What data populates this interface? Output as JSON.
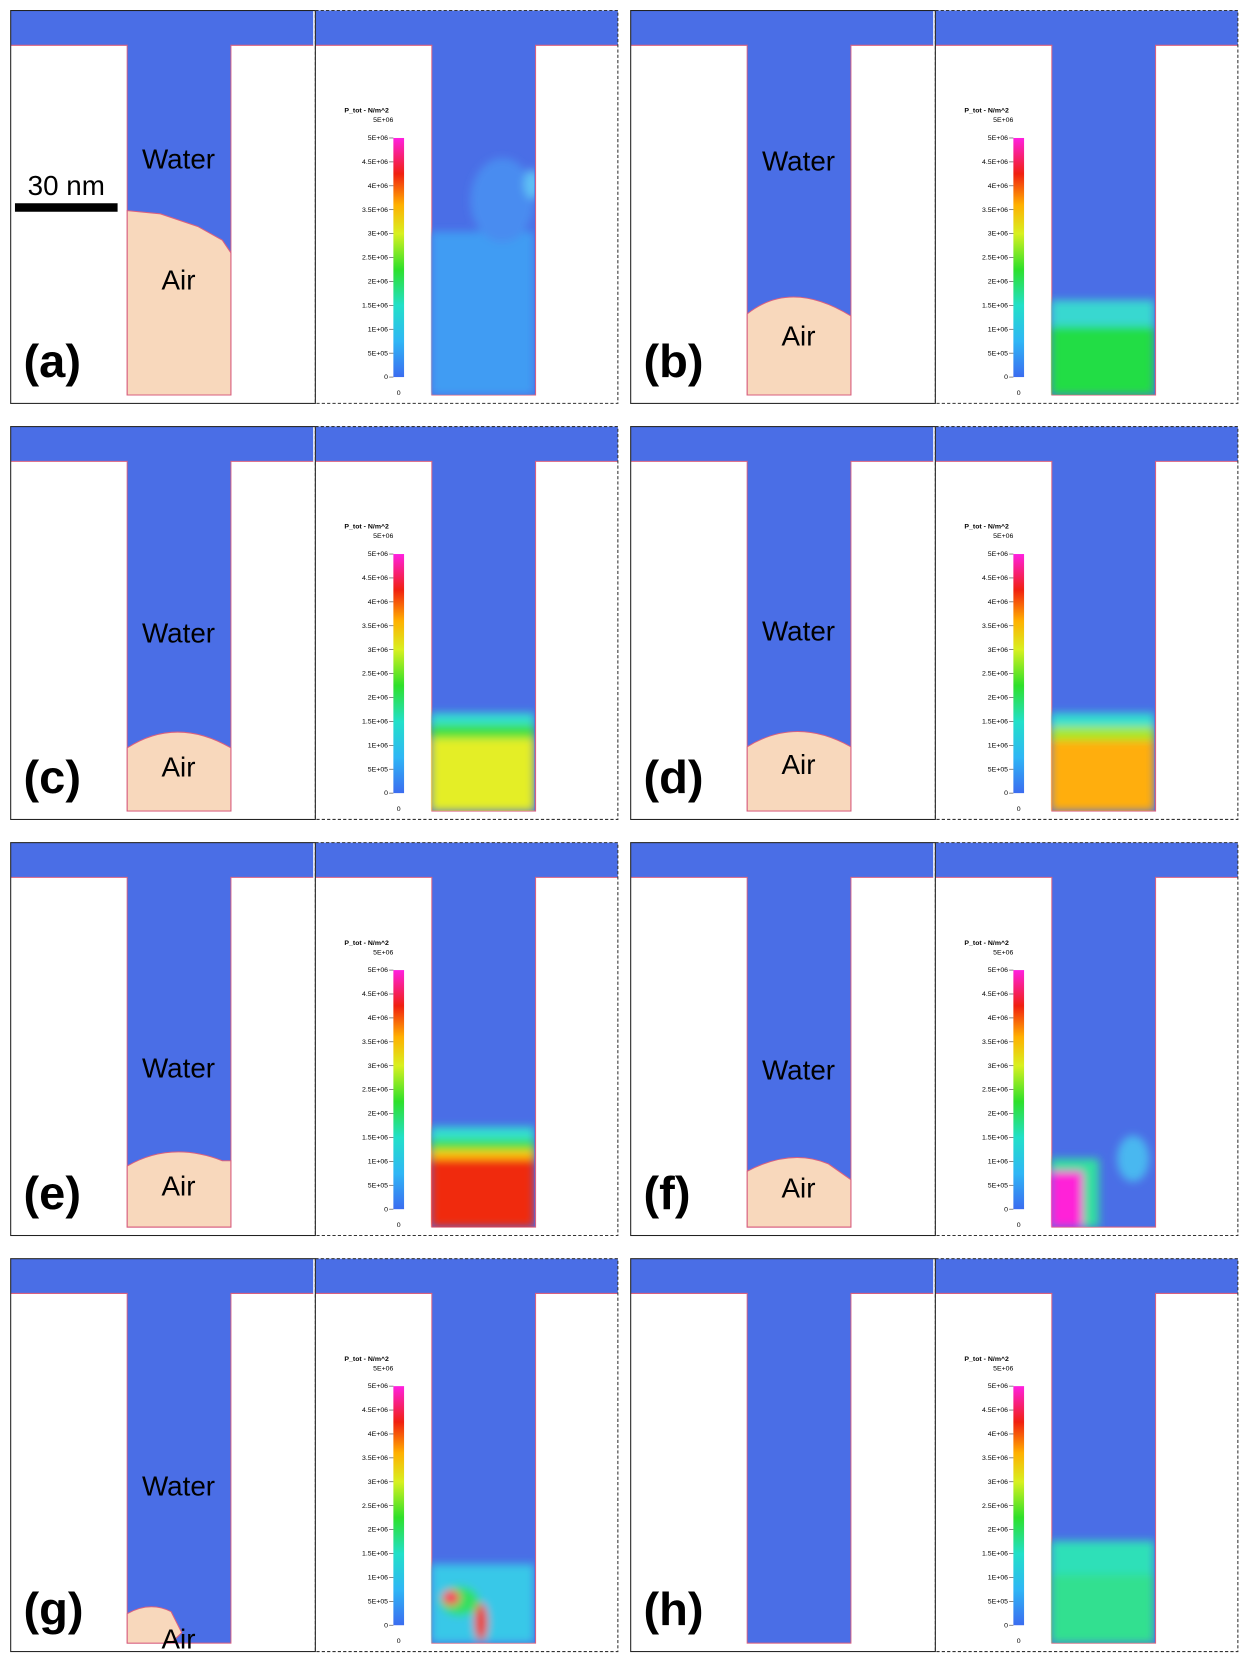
{
  "panels": [
    {
      "label": "(a)",
      "water": "Water",
      "air": "Air",
      "scale_bar": "30 nm"
    },
    {
      "label": "(b)",
      "water": "Water",
      "air": "Air"
    },
    {
      "label": "(c)",
      "water": "Water",
      "air": "Air"
    },
    {
      "label": "(d)",
      "water": "Water",
      "air": "Air"
    },
    {
      "label": "(e)",
      "water": "Water",
      "air": "Air"
    },
    {
      "label": "(f)",
      "water": "Water",
      "air": "Air"
    },
    {
      "label": "(g)",
      "water": "Water",
      "air": "Air"
    },
    {
      "label": "(h)"
    }
  ],
  "colorbar": {
    "title": "P_tot - N/m^2",
    "max_label": "5E+06",
    "min_label": "0",
    "ticks": [
      {
        "value": 5000000,
        "label": "5E+06"
      },
      {
        "value": 4500000,
        "label": "4.5E+06"
      },
      {
        "value": 4000000,
        "label": "4E+06"
      },
      {
        "value": 3500000,
        "label": "3.5E+06"
      },
      {
        "value": 3000000,
        "label": "3E+06"
      },
      {
        "value": 2500000,
        "label": "2.5E+06"
      },
      {
        "value": 2000000,
        "label": "2E+06"
      },
      {
        "value": 1500000,
        "label": "1.5E+06"
      },
      {
        "value": 1000000,
        "label": "1E+06"
      },
      {
        "value": 500000,
        "label": "5E+05"
      },
      0
    ]
  }
}
